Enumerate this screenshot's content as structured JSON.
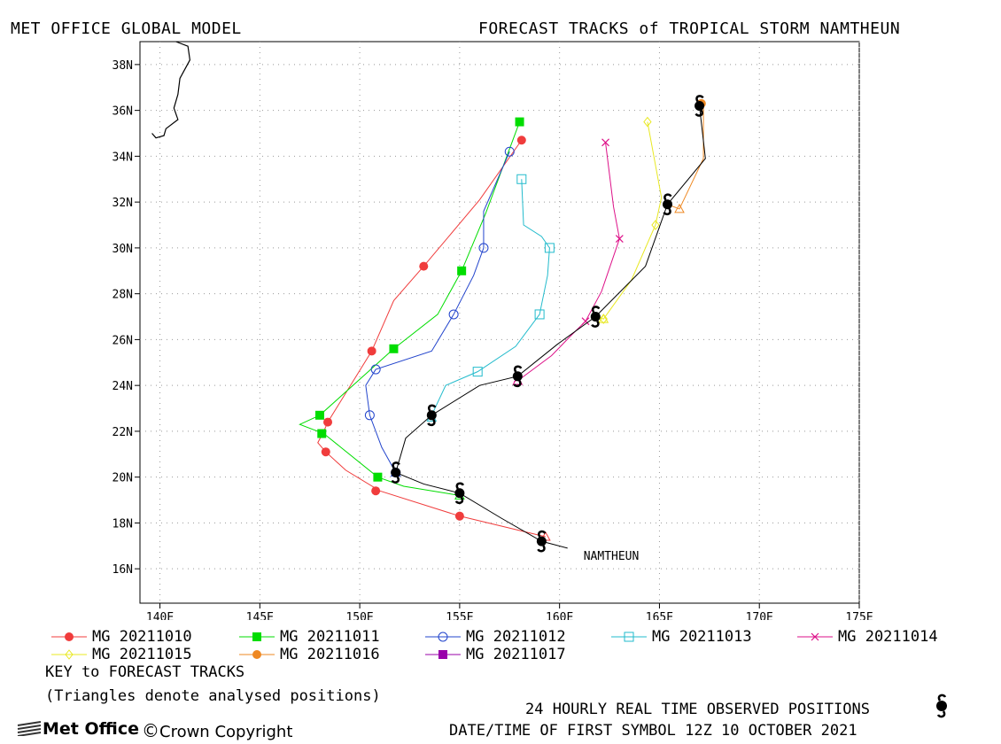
{
  "header": {
    "left": "MET OFFICE GLOBAL MODEL",
    "right": "FORECAST TRACKS of TROPICAL STORM NAMTHEUN"
  },
  "map": {
    "lon_range": [
      139,
      175
    ],
    "lat_range": [
      14.5,
      39
    ],
    "lon_ticks": [
      "140E",
      "145E",
      "150E",
      "155E",
      "160E",
      "165E",
      "170E",
      "175E"
    ],
    "lat_ticks": [
      "16N",
      "18N",
      "20N",
      "22N",
      "24N",
      "26N",
      "28N",
      "30N",
      "32N",
      "34N",
      "36N",
      "38N"
    ],
    "storm_label": "NAMTHEUN",
    "storm_label_pos": [
      161.2,
      16.4
    ],
    "coastline": [
      [
        139.5,
        38.3
      ],
      [
        139.8,
        38.5
      ],
      [
        140.2,
        38.8
      ],
      [
        140.6,
        38.6
      ],
      [
        140.8,
        38.2
      ],
      [
        140.4,
        37.7
      ],
      [
        140.3,
        36.9
      ],
      [
        140.6,
        36.4
      ],
      [
        140.9,
        35.7
      ],
      [
        140.7,
        35.2
      ],
      [
        140.0,
        35.3
      ],
      [
        139.6,
        34.9
      ]
    ],
    "coastline2": [
      [
        140.8,
        39.0
      ],
      [
        141.4,
        38.8
      ],
      [
        141.5,
        38.2
      ],
      [
        141.0,
        37.4
      ],
      [
        140.9,
        36.7
      ],
      [
        140.7,
        36.1
      ],
      [
        140.9,
        35.6
      ],
      [
        140.3,
        35.2
      ],
      [
        140.2,
        34.9
      ],
      [
        139.8,
        34.8
      ],
      [
        139.6,
        35.0
      ]
    ]
  },
  "observed": [
    [
      160.4,
      16.9
    ],
    [
      159.1,
      17.2
    ],
    [
      155.0,
      19.3
    ],
    [
      151.8,
      20.2
    ],
    [
      153.6,
      22.7
    ],
    [
      157.9,
      24.4
    ],
    [
      161.8,
      27.0
    ],
    [
      165.4,
      31.9
    ],
    [
      167.0,
      36.2
    ]
  ],
  "observed_line": [
    [
      160.4,
      16.9
    ],
    [
      159.1,
      17.2
    ],
    [
      157.1,
      18.2
    ],
    [
      155.0,
      19.3
    ],
    [
      153.2,
      19.7
    ],
    [
      151.8,
      20.2
    ],
    [
      152.3,
      21.7
    ],
    [
      153.6,
      22.7
    ],
    [
      156.0,
      24.0
    ],
    [
      157.9,
      24.4
    ],
    [
      159.9,
      25.8
    ],
    [
      161.8,
      27.0
    ],
    [
      164.3,
      29.2
    ],
    [
      165.4,
      31.9
    ],
    [
      167.3,
      33.9
    ],
    [
      167.0,
      36.2
    ]
  ],
  "chart_data": {
    "type": "scatter",
    "title": "FORECAST TRACKS of TROPICAL STORM NAMTHEUN",
    "xlabel": "",
    "ylabel": "",
    "xlim": [
      139,
      175
    ],
    "ylim": [
      14.5,
      39
    ],
    "series": [
      {
        "name": "MG 20211010",
        "color": "#f03c3c",
        "marker": "dot",
        "line": [
          [
            159.3,
            17.4
          ],
          [
            155.0,
            18.3
          ],
          [
            151.0,
            19.4
          ],
          [
            149.3,
            20.3
          ],
          [
            148.3,
            21.1
          ],
          [
            147.9,
            21.5
          ],
          [
            148.2,
            22.0
          ],
          [
            148.4,
            22.4
          ],
          [
            150.6,
            25.5
          ],
          [
            151.7,
            27.7
          ],
          [
            153.2,
            29.2
          ],
          [
            156.0,
            32.1
          ],
          [
            158.1,
            34.7
          ]
        ],
        "points": [
          [
            155.0,
            18.3
          ],
          [
            150.8,
            19.4
          ],
          [
            148.3,
            21.1
          ],
          [
            148.4,
            22.4
          ],
          [
            150.6,
            25.5
          ],
          [
            153.2,
            29.2
          ],
          [
            158.1,
            34.7
          ]
        ]
      },
      {
        "name": "MG 20211011",
        "color": "#00dd00",
        "marker": "square",
        "line": [
          [
            155.0,
            19.2
          ],
          [
            152.2,
            19.6
          ],
          [
            150.9,
            20.0
          ],
          [
            148.2,
            21.9
          ],
          [
            147.0,
            22.3
          ],
          [
            148.0,
            22.7
          ],
          [
            151.7,
            25.6
          ],
          [
            153.9,
            27.1
          ],
          [
            155.1,
            29.0
          ],
          [
            156.3,
            31.5
          ],
          [
            158.0,
            35.5
          ]
        ],
        "points": [
          [
            150.9,
            20.0
          ],
          [
            148.1,
            21.9
          ],
          [
            148.0,
            22.7
          ],
          [
            151.7,
            25.6
          ],
          [
            155.1,
            29.0
          ],
          [
            158.0,
            35.5
          ]
        ]
      },
      {
        "name": "MG 20211012",
        "color": "#2244cc",
        "marker": "circle",
        "line": [
          [
            151.8,
            20.2
          ],
          [
            151.1,
            21.3
          ],
          [
            150.5,
            22.7
          ],
          [
            150.3,
            24.0
          ],
          [
            150.8,
            24.7
          ],
          [
            153.6,
            25.5
          ],
          [
            154.7,
            27.1
          ],
          [
            155.7,
            28.8
          ],
          [
            156.2,
            30.0
          ],
          [
            156.2,
            31.6
          ],
          [
            157.5,
            34.2
          ]
        ],
        "points": [
          [
            151.8,
            20.2
          ],
          [
            150.5,
            22.7
          ],
          [
            150.8,
            24.7
          ],
          [
            154.7,
            27.1
          ],
          [
            156.2,
            30.0
          ],
          [
            157.5,
            34.2
          ]
        ]
      },
      {
        "name": "MG 20211013",
        "color": "#22bbcc",
        "marker": "hsquare",
        "line": [
          [
            153.6,
            22.7
          ],
          [
            154.3,
            24.0
          ],
          [
            155.9,
            24.6
          ],
          [
            157.8,
            25.7
          ],
          [
            159.0,
            27.1
          ],
          [
            159.4,
            28.8
          ],
          [
            159.5,
            30.0
          ],
          [
            159.1,
            30.5
          ],
          [
            158.2,
            31.0
          ],
          [
            158.1,
            33.0
          ]
        ],
        "points": [
          [
            155.9,
            24.6
          ],
          [
            159.0,
            27.1
          ],
          [
            159.5,
            30.0
          ],
          [
            158.1,
            33.0
          ]
        ]
      },
      {
        "name": "MG 20211014",
        "color": "#dd1188",
        "marker": "x",
        "line": [
          [
            157.9,
            24.2
          ],
          [
            159.6,
            25.3
          ],
          [
            160.6,
            26.2
          ],
          [
            161.3,
            26.8
          ],
          [
            162.1,
            28.1
          ],
          [
            163.0,
            30.4
          ],
          [
            162.7,
            31.8
          ],
          [
            162.3,
            34.6
          ]
        ],
        "points": [
          [
            157.9,
            24.3
          ],
          [
            161.3,
            26.8
          ],
          [
            163.0,
            30.4
          ],
          [
            162.3,
            34.6
          ]
        ]
      },
      {
        "name": "MG 20211015",
        "color": "#e8e820",
        "marker": "diamond",
        "line": [
          [
            161.8,
            27.0
          ],
          [
            162.2,
            26.9
          ],
          [
            163.6,
            28.6
          ],
          [
            164.8,
            31.0
          ],
          [
            165.1,
            32.2
          ],
          [
            164.4,
            35.5
          ]
        ],
        "points": [
          [
            162.2,
            26.9
          ],
          [
            164.8,
            31.0
          ],
          [
            164.4,
            35.5
          ]
        ]
      },
      {
        "name": "MG 20211016",
        "color": "#ee8822",
        "marker": "dotorange",
        "line": [
          [
            165.4,
            31.9
          ],
          [
            166.0,
            31.7
          ],
          [
            167.2,
            33.9
          ],
          [
            167.2,
            36.3
          ]
        ],
        "points": [
          [
            167.1,
            36.3
          ]
        ]
      },
      {
        "name": "MG 20211017",
        "color": "#9900aa",
        "marker": "squarepurple",
        "line": [],
        "points": []
      }
    ],
    "analysed_triangles": [
      {
        "pos": [
          159.3,
          17.4
        ],
        "color": "#f03c3c"
      },
      {
        "pos": [
          155.0,
          19.2
        ],
        "color": "#00dd00"
      },
      {
        "pos": [
          151.8,
          20.2
        ],
        "color": "#2244cc"
      },
      {
        "pos": [
          153.6,
          22.6
        ],
        "color": "#22bbcc"
      },
      {
        "pos": [
          157.9,
          24.2
        ],
        "color": "#dd1188"
      },
      {
        "pos": [
          162.2,
          26.9
        ],
        "color": "#e8e820"
      },
      {
        "pos": [
          166.0,
          31.7
        ],
        "color": "#ee8822"
      }
    ]
  },
  "legend": {
    "row1": [
      "MG 20211010",
      "MG 20211011",
      "MG 20211012",
      "MG 20211013",
      "MG 20211014"
    ],
    "row2": [
      "MG 20211015",
      "MG 20211016",
      "MG 20211017"
    ]
  },
  "notes": {
    "key": "KEY to FORECAST TRACKS",
    "triangles": "(Triangles denote analysed positions)",
    "observed": "24 HOURLY REAL TIME OBSERVED POSITIONS",
    "datetime": "DATE/TIME OF FIRST SYMBOL 12Z 10 OCTOBER 2021"
  },
  "footer": {
    "brand": "Met Office",
    "copyright": "Crown Copyright"
  }
}
